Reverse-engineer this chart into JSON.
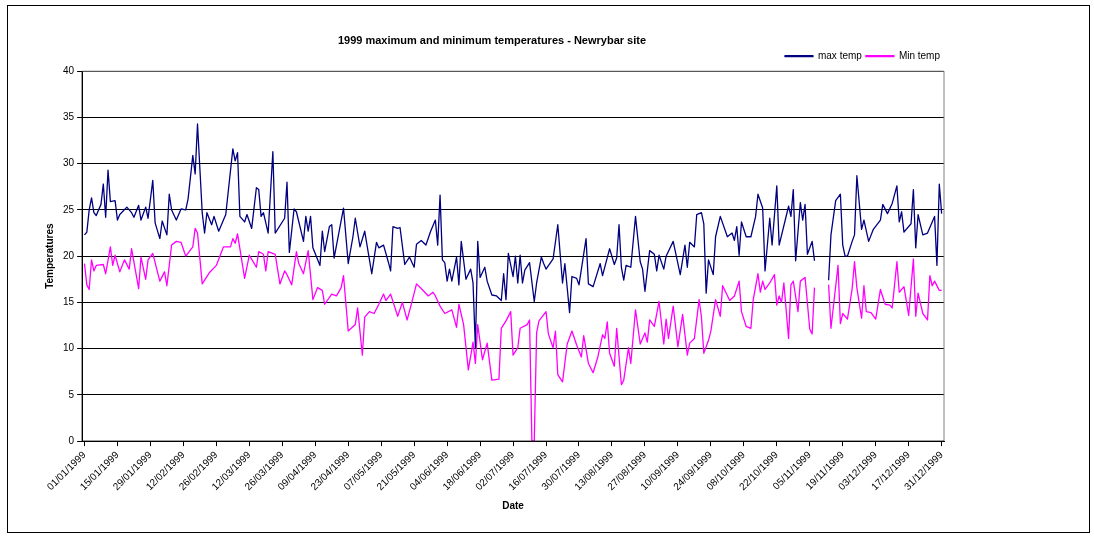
{
  "chart_data": {
    "type": "line",
    "title": "1999 maximum and minimum temperatures - Newrybar site",
    "xlabel": "Date",
    "ylabel": "Temperatures",
    "xlim": [
      "1998-12-31",
      "2000-01-01"
    ],
    "xticks": [
      {
        "value": "1999-01-01",
        "label": "01/01/1999"
      },
      {
        "value": "1999-01-15",
        "label": "15/01/1999"
      },
      {
        "value": "1999-01-29",
        "label": "29/01/1999"
      },
      {
        "value": "1999-02-12",
        "label": "12/02/1999"
      },
      {
        "value": "1999-02-26",
        "label": "26/02/1999"
      },
      {
        "value": "1999-03-12",
        "label": "12/03/1999"
      },
      {
        "value": "1999-03-26",
        "label": "26/03/1999"
      },
      {
        "value": "1999-04-09",
        "label": "09/04/1999"
      },
      {
        "value": "1999-04-23",
        "label": "23/04/1999"
      },
      {
        "value": "1999-05-07",
        "label": "07/05/1999"
      },
      {
        "value": "1999-05-21",
        "label": "21/05/1999"
      },
      {
        "value": "1999-06-04",
        "label": "04/06/1999"
      },
      {
        "value": "1999-06-18",
        "label": "18/06/1999"
      },
      {
        "value": "1999-07-02",
        "label": "02/07/1999"
      },
      {
        "value": "1999-07-16",
        "label": "16/07/1999"
      },
      {
        "value": "1999-07-30",
        "label": "30/07/1999"
      },
      {
        "value": "1999-08-13",
        "label": "13/08/1999"
      },
      {
        "value": "1999-08-27",
        "label": "27/08/1999"
      },
      {
        "value": "1999-09-10",
        "label": "10/09/1999"
      },
      {
        "value": "1999-09-24",
        "label": "24/09/1999"
      },
      {
        "value": "1999-10-08",
        "label": "08/10/1999"
      },
      {
        "value": "1999-10-22",
        "label": "22/10/1999"
      },
      {
        "value": "1999-11-05",
        "label": "05/11/1999"
      },
      {
        "value": "1999-11-19",
        "label": "19/11/1999"
      },
      {
        "value": "1999-12-03",
        "label": "03/12/1999"
      },
      {
        "value": "1999-12-17",
        "label": "17/12/1999"
      },
      {
        "value": "1999-12-31",
        "label": "31/12/1999"
      }
    ],
    "ylim": [
      0,
      40
    ],
    "yticks": [
      0,
      5,
      10,
      15,
      20,
      25,
      30,
      35,
      40
    ],
    "grid": "y",
    "legend": "top right",
    "marker": "none",
    "series": [
      {
        "name": "max temp",
        "color": "#000080",
        "x": [
          "1999-01-01",
          "1999-01-02",
          "1999-01-03",
          "1999-01-04",
          "1999-01-05",
          "1999-01-06",
          "1999-01-08",
          "1999-01-09",
          "1999-01-10",
          "1999-01-11",
          "1999-01-12",
          "1999-01-14",
          "1999-01-15",
          "1999-01-16",
          "1999-01-19",
          "1999-01-21",
          "1999-01-22",
          "1999-01-24",
          "1999-01-25",
          "1999-01-27",
          "1999-01-28",
          "1999-01-30",
          "1999-01-31",
          "1999-02-02",
          "1999-02-03",
          "1999-02-05",
          "1999-02-06",
          "1999-02-07",
          "1999-02-09",
          "1999-02-11",
          "1999-02-13",
          "1999-02-14",
          "1999-02-16",
          "1999-02-17",
          "1999-02-18",
          "1999-02-20",
          "1999-02-21",
          "1999-02-22",
          "1999-02-24",
          "1999-02-25",
          "1999-02-27",
          "1999-03-02",
          "1999-03-05",
          "1999-03-06",
          "1999-03-07",
          "1999-03-08",
          "1999-03-10",
          "1999-03-11",
          "1999-03-13",
          "1999-03-15",
          "1999-03-16",
          "1999-03-17",
          "1999-03-18",
          "1999-03-20",
          "1999-03-22",
          "1999-03-23",
          "1999-03-27",
          "1999-03-28",
          "1999-03-29",
          "1999-03-31",
          "1999-04-01",
          "1999-04-04",
          "1999-04-05",
          "1999-04-06",
          "1999-04-07",
          "1999-04-08",
          "1999-04-11",
          "1999-04-12",
          "1999-04-13",
          "1999-04-15",
          "1999-04-16",
          "1999-04-17",
          "1999-04-21",
          "1999-04-23",
          "1999-04-25",
          "1999-04-26",
          "1999-04-28",
          "1999-04-30",
          "1999-05-03",
          "1999-05-05",
          "1999-05-06",
          "1999-05-08",
          "1999-05-10",
          "1999-05-11",
          "1999-05-12",
          "1999-05-14",
          "1999-05-15",
          "1999-05-17",
          "1999-05-19",
          "1999-05-21",
          "1999-05-22",
          "1999-05-24",
          "1999-05-26",
          "1999-05-28",
          "1999-05-30",
          "1999-05-31",
          "1999-06-01",
          "1999-06-02",
          "1999-06-03",
          "1999-06-04",
          "1999-06-05",
          "1999-06-06",
          "1999-06-08",
          "1999-06-09",
          "1999-06-10",
          "1999-06-12",
          "1999-06-14",
          "1999-06-15",
          "1999-06-16",
          "1999-06-17",
          "1999-06-18",
          "1999-06-20",
          "1999-06-21",
          "1999-06-23",
          "1999-06-25",
          "1999-06-27",
          "1999-06-28",
          "1999-06-29",
          "1999-06-30",
          "1999-07-02",
          "1999-07-03",
          "1999-07-04",
          "1999-07-05",
          "1999-07-06",
          "1999-07-07",
          "1999-07-09",
          "1999-07-11",
          "1999-07-12",
          "1999-07-14",
          "1999-07-15",
          "1999-07-16",
          "1999-07-19",
          "1999-07-21",
          "1999-07-23",
          "1999-07-24",
          "1999-07-26",
          "1999-07-27",
          "1999-07-29",
          "1999-07-30",
          "1999-08-02",
          "1999-08-03",
          "1999-08-05",
          "1999-08-08",
          "1999-08-09",
          "1999-08-12",
          "1999-08-14",
          "1999-08-15",
          "1999-08-16",
          "1999-08-17",
          "1999-08-18",
          "1999-08-19",
          "1999-08-21",
          "1999-08-23",
          "1999-08-25",
          "1999-08-26",
          "1999-08-27",
          "1999-08-29",
          "1999-08-31",
          "1999-09-01",
          "1999-09-02",
          "1999-09-04",
          "1999-09-05",
          "1999-09-08",
          "1999-09-11",
          "1999-09-13",
          "1999-09-14",
          "1999-09-15",
          "1999-09-17",
          "1999-09-18",
          "1999-09-20",
          "1999-09-21",
          "1999-09-22",
          "1999-09-23",
          "1999-09-25",
          "1999-09-26",
          "1999-09-28",
          "1999-10-01",
          "1999-10-03",
          "1999-10-04",
          "1999-10-05",
          "1999-10-06",
          "1999-10-07",
          "1999-10-09",
          "1999-10-11",
          "1999-10-13",
          "1999-10-14",
          "1999-10-16",
          "1999-10-17",
          "1999-10-19",
          "1999-10-20",
          "1999-10-22",
          "1999-10-23",
          "1999-10-27",
          "1999-10-28",
          "1999-10-29",
          "1999-10-30",
          "1999-11-01",
          "1999-11-02",
          "1999-11-03",
          "1999-11-04",
          "1999-11-06",
          "1999-11-07",
          "1999-11-10",
          "1999-11-13",
          "1999-11-14",
          "1999-11-16",
          "1999-11-18",
          "1999-11-19",
          "1999-11-20",
          "1999-11-21",
          "1999-11-23",
          "1999-11-24",
          "1999-11-25",
          "1999-11-27",
          "1999-11-28",
          "1999-11-30",
          "1999-12-02",
          "1999-12-05",
          "1999-12-06",
          "1999-12-08",
          "1999-12-10",
          "1999-12-12",
          "1999-12-13",
          "1999-12-14",
          "1999-12-15",
          "1999-12-18",
          "1999-12-19",
          "1999-12-20",
          "1999-12-21",
          "1999-12-23",
          "1999-12-25",
          "1999-12-28",
          "1999-12-29",
          "1999-12-30",
          "1999-12-31"
        ],
        "values": [
          22.3,
          22.6,
          25.0,
          26.3,
          24.7,
          24.4,
          25.6,
          27.8,
          24.2,
          29.3,
          25.9,
          26.0,
          23.9,
          24.5,
          25.3,
          24.7,
          24.2,
          25.5,
          23.9,
          25.3,
          24.1,
          28.2,
          23.6,
          21.9,
          23.8,
          22.3,
          26.7,
          25.0,
          23.9,
          25.1,
          25.0,
          26.2,
          30.9,
          28.9,
          34.3,
          24.7,
          22.5,
          24.7,
          23.4,
          24.3,
          22.7,
          24.5,
          31.6,
          30.3,
          31.2,
          24.3,
          23.7,
          24.5,
          23.0,
          27.4,
          27.2,
          24.3,
          24.7,
          22.5,
          31.3,
          22.5,
          24.1,
          28.0,
          20.4,
          25.1,
          24.8,
          21.6,
          24.3,
          22.7,
          24.3,
          20.9,
          19.0,
          22.7,
          20.5,
          23.2,
          23.4,
          19.8,
          25.2,
          19.2,
          22.1,
          24.1,
          21.0,
          22.7,
          18.1,
          21.5,
          20.9,
          21.2,
          19.4,
          18.4,
          23.2,
          23.0,
          23.1,
          19.1,
          19.9,
          18.8,
          21.3,
          21.7,
          21.2,
          22.7,
          23.9,
          21.2,
          26.6,
          19.6,
          19.3,
          17.3,
          18.6,
          17.3,
          19.9,
          16.9,
          21.6,
          17.5,
          18.6,
          17.1,
          10.1,
          21.6,
          17.7,
          18.8,
          17.3,
          15.8,
          15.7,
          15.2,
          18.1,
          15.3,
          20.3,
          17.8,
          20.0,
          17.1,
          20.1,
          17.1,
          18.5,
          19.3,
          15.1,
          17.1,
          19.9,
          19.2,
          18.6,
          19.7,
          23.4,
          17.1,
          19.2,
          13.9,
          17.8,
          17.6,
          16.9,
          21.9,
          17.0,
          16.7,
          19.2,
          17.9,
          20.8,
          19.1,
          19.8,
          23.4,
          18.8,
          17.4,
          19.0,
          18.8,
          24.3,
          19.4,
          18.6,
          16.2,
          20.6,
          20.2,
          18.4,
          20.1,
          18.6,
          20.0,
          21.6,
          18.0,
          21.2,
          18.8,
          21.5,
          21.0,
          24.5,
          24.7,
          23.5,
          16.0,
          19.6,
          18.0,
          22.1,
          24.3,
          22.1,
          22.5,
          21.7,
          23.2,
          20.1,
          23.7,
          22.1,
          22.1,
          24.3,
          26.7,
          25.2,
          18.4,
          24.1,
          21.2,
          27.6,
          21.2,
          25.4,
          24.3,
          27.2,
          19.5,
          25.8,
          23.9,
          25.6,
          20.2,
          21.6,
          19.5,
          null,
          17.4,
          22.3,
          26.0,
          26.7,
          21.2,
          20.0,
          20.0,
          21.6,
          22.3,
          28.7,
          22.9,
          23.9,
          21.6,
          22.9,
          23.9,
          25.6,
          24.6,
          25.7,
          27.6,
          23.7,
          24.8,
          22.6,
          23.5,
          27.2,
          20.9,
          24.5,
          22.3,
          22.5,
          24.3,
          19.0,
          27.8,
          24.6
        ]
      },
      {
        "name": "Min temp",
        "color": "#ff00ff",
        "x": [
          "1999-01-01",
          "1999-01-02",
          "1999-01-03",
          "1999-01-04",
          "1999-01-05",
          "1999-01-06",
          "1999-01-09",
          "1999-01-10",
          "1999-01-12",
          "1999-01-13",
          "1999-01-14",
          "1999-01-16",
          "1999-01-18",
          "1999-01-20",
          "1999-01-21",
          "1999-01-24",
          "1999-01-25",
          "1999-01-27",
          "1999-01-28",
          "1999-01-30",
          "1999-02-02",
          "1999-02-04",
          "1999-02-05",
          "1999-02-07",
          "1999-02-09",
          "1999-02-11",
          "1999-02-13",
          "1999-02-16",
          "1999-02-17",
          "1999-02-18",
          "1999-02-20",
          "1999-02-23",
          "1999-02-26",
          "1999-03-01",
          "1999-03-04",
          "1999-03-05",
          "1999-03-06",
          "1999-03-07",
          "1999-03-10",
          "1999-03-12",
          "1999-03-15",
          "1999-03-16",
          "1999-03-18",
          "1999-03-19",
          "1999-03-20",
          "1999-03-23",
          "1999-03-25",
          "1999-03-27",
          "1999-03-28",
          "1999-03-30",
          "1999-04-01",
          "1999-04-02",
          "1999-04-04",
          "1999-04-06",
          "1999-04-08",
          "1999-04-10",
          "1999-04-12",
          "1999-04-13",
          "1999-04-16",
          "1999-04-18",
          "1999-04-20",
          "1999-04-21",
          "1999-04-23",
          "1999-04-26",
          "1999-04-27",
          "1999-04-29",
          "1999-04-30",
          "1999-05-02",
          "1999-05-04",
          "1999-05-06",
          "1999-05-08",
          "1999-05-09",
          "1999-05-11",
          "1999-05-14",
          "1999-05-16",
          "1999-05-18",
          "1999-05-20",
          "1999-05-22",
          "1999-05-24",
          "1999-05-27",
          "1999-05-29",
          "1999-05-30",
          "1999-06-01",
          "1999-06-03",
          "1999-06-06",
          "1999-06-08",
          "1999-06-09",
          "1999-06-11",
          "1999-06-13",
          "1999-06-15",
          "1999-06-16",
          "1999-06-17",
          "1999-06-19",
          "1999-06-21",
          "1999-06-23",
          "1999-06-26",
          "1999-06-27",
          "1999-06-29",
          "1999-07-01",
          "1999-07-02",
          "1999-07-04",
          "1999-07-05",
          "1999-07-08",
          "1999-07-09",
          "1999-07-10",
          "1999-07-11",
          "1999-07-12",
          "1999-07-13",
          "1999-07-16",
          "1999-07-17",
          "1999-07-19",
          "1999-07-20",
          "1999-07-21",
          "1999-07-23",
          "1999-07-25",
          "1999-07-27",
          "1999-07-29",
          "1999-07-31",
          "1999-08-01",
          "1999-08-03",
          "1999-08-05",
          "1999-08-07",
          "1999-08-09",
          "1999-08-10",
          "1999-08-11",
          "1999-08-12",
          "1999-08-14",
          "1999-08-15",
          "1999-08-17",
          "1999-08-18",
          "1999-08-20",
          "1999-08-21",
          "1999-08-23",
          "1999-08-25",
          "1999-08-27",
          "1999-08-28",
          "1999-08-29",
          "1999-08-31",
          "1999-09-02",
          "1999-09-04",
          "1999-09-05",
          "1999-09-06",
          "1999-09-08",
          "1999-09-10",
          "1999-09-12",
          "1999-09-14",
          "1999-09-15",
          "1999-09-17",
          "1999-09-19",
          "1999-09-20",
          "1999-09-21",
          "1999-09-23",
          "1999-09-24",
          "1999-09-26",
          "1999-09-28",
          "1999-09-29",
          "1999-10-02",
          "1999-10-04",
          "1999-10-06",
          "1999-10-07",
          "1999-10-09",
          "1999-10-11",
          "1999-10-12",
          "1999-10-14",
          "1999-10-15",
          "1999-10-16",
          "1999-10-17",
          "1999-10-19",
          "1999-10-21",
          "1999-10-22",
          "1999-10-23",
          "1999-10-24",
          "1999-10-25",
          "1999-10-27",
          "1999-10-28",
          "1999-10-29",
          "1999-10-31",
          "1999-11-01",
          "1999-11-03",
          "1999-11-05",
          "1999-11-06",
          "1999-11-07",
          "1999-11-10",
          "1999-11-13",
          "1999-11-14",
          "1999-11-17",
          "1999-11-18",
          "1999-11-19",
          "1999-11-21",
          "1999-11-23",
          "1999-11-24",
          "1999-11-25",
          "1999-11-27",
          "1999-11-28",
          "1999-11-29",
          "1999-12-01",
          "1999-12-03",
          "1999-12-05",
          "1999-12-07",
          "1999-12-09",
          "1999-12-10",
          "1999-12-12",
          "1999-12-13",
          "1999-12-15",
          "1999-12-17",
          "1999-12-19",
          "1999-12-20",
          "1999-12-21",
          "1999-12-23",
          "1999-12-25",
          "1999-12-26",
          "1999-12-27",
          "1999-12-28",
          "1999-12-30",
          "1999-12-31"
        ],
        "values": [
          19.2,
          16.9,
          16.4,
          19.6,
          18.4,
          19.0,
          19.1,
          18.1,
          21.0,
          19.0,
          20.1,
          18.3,
          19.6,
          18.6,
          20.8,
          16.5,
          19.9,
          17.5,
          19.6,
          20.3,
          17.3,
          18.3,
          16.8,
          21.2,
          21.6,
          21.5,
          20.0,
          21.0,
          23.0,
          22.5,
          17.0,
          18.2,
          19.0,
          21.0,
          21.0,
          21.9,
          21.4,
          22.4,
          17.6,
          20.1,
          18.8,
          20.5,
          20.2,
          18.4,
          20.5,
          20.2,
          17.0,
          18.4,
          18.0,
          16.9,
          20.5,
          19.2,
          18.1,
          20.6,
          15.3,
          16.6,
          16.3,
          14.8,
          15.9,
          15.7,
          16.6,
          17.9,
          11.9,
          12.6,
          14.4,
          9.3,
          13.4,
          14.0,
          13.8,
          14.8,
          15.9,
          15.2,
          15.9,
          13.5,
          15.0,
          13.1,
          15.0,
          17.0,
          16.5,
          15.7,
          16.1,
          15.7,
          14.6,
          13.8,
          14.2,
          12.3,
          14.8,
          12.6,
          7.7,
          10.7,
          8.4,
          12.6,
          8.8,
          10.6,
          6.6,
          6.7,
          12.2,
          13.0,
          14.0,
          9.3,
          10.1,
          12.2,
          12.6,
          13.1,
          0,
          0,
          11.7,
          13.0,
          14.0,
          11.6,
          10.1,
          11.9,
          7.2,
          6.4,
          10.5,
          11.9,
          10.4,
          9.1,
          11.4,
          8.4,
          7.4,
          9.1,
          11.5,
          11.1,
          12.9,
          9.5,
          8.1,
          12.2,
          6.1,
          6.6,
          10.1,
          8.4,
          14.2,
          10.5,
          11.7,
          10.7,
          13.1,
          12.4,
          15.1,
          10.5,
          13.2,
          11.1,
          14.6,
          10.2,
          13.7,
          9.3,
          10.6,
          11.1,
          15.3,
          13.4,
          9.5,
          10.9,
          11.9,
          15.3,
          13.5,
          16.8,
          15.2,
          15.7,
          17.3,
          14.0,
          12.4,
          12.2,
          15.3,
          18.1,
          16.1,
          17.3,
          16.4,
          17.1,
          18.0,
          14.7,
          15.7,
          15.0,
          17.1,
          11.1,
          16.9,
          17.3,
          14.0,
          17.3,
          17.7,
          12.1,
          11.6,
          16.6,
          null,
          16.9,
          12.2,
          19.0,
          12.7,
          13.8,
          13.2,
          16.5,
          19.4,
          16.6,
          13.3,
          16.8,
          14.0,
          13.9,
          13.2,
          16.4,
          14.8,
          14.7,
          14.4,
          19.4,
          16.1,
          16.7,
          13.6,
          19.7,
          13.5,
          16.0,
          13.8,
          13.1,
          17.9,
          16.8,
          17.3,
          16.3,
          16.3
        ]
      }
    ]
  }
}
